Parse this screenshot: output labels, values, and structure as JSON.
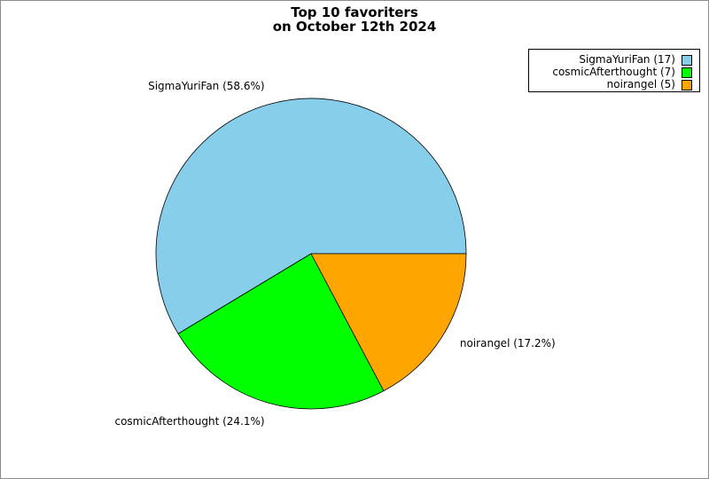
{
  "chart_data": {
    "type": "pie",
    "title_lines": [
      "Top 10 favoriters",
      "on October 12th 2024"
    ],
    "slices": [
      {
        "name": "SigmaYuriFan",
        "value": 17,
        "percent_label": "SigmaYuriFan (58.6%)",
        "legend_label": "SigmaYuriFan (17)",
        "color": "#87ceeb"
      },
      {
        "name": "cosmicAfterthought",
        "value": 7,
        "percent_label": "cosmicAfterthought (24.1%)",
        "legend_label": "cosmicAfterthought (7)",
        "color": "#00ff00"
      },
      {
        "name": "noirangel",
        "value": 5,
        "percent_label": "noirangel (17.2%)",
        "legend_label": "noirangel (5)",
        "color": "#ffa500"
      }
    ],
    "start_angle_deg": 0,
    "direction": "counterclockwise",
    "legend_position": "top-right"
  }
}
